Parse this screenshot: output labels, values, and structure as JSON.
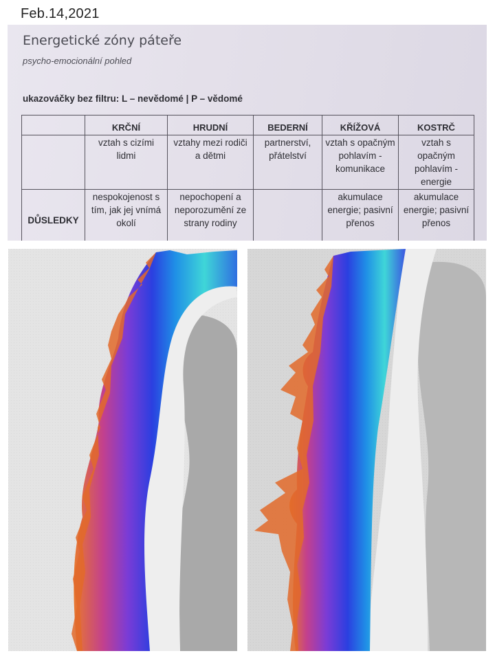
{
  "photo_date": "Feb.14,2021",
  "document": {
    "title": "Energetické zóny páteře",
    "subtitle": "psycho-emocionální pohled",
    "note": "ukazováčky bez filtru: L – nevědomé | P – vědomé",
    "table": {
      "headers": [
        "",
        "KRČNÍ",
        "HRUDNÍ",
        "BEDERNÍ",
        "KŘÍŽOVÁ",
        "KOSTRČ"
      ],
      "rows": [
        {
          "label": "",
          "cells": [
            "vztah s cizími lidmi",
            "vztahy mezi rodiči a dětmi",
            "partnerství, přátelství",
            "vztah s opačným pohlavím - komunikace",
            "vztah s opačným pohlavím - energie"
          ]
        },
        {
          "label": "DŮSLEDKY",
          "cells": [
            "nespokojenost s tím, jak jej vnímá okolí",
            "nepochopení a neporozumění ze strany rodiny",
            "",
            "akumulace energie; pasivní přenos",
            "akumulace energie; pasivní přenos"
          ]
        }
      ]
    }
  },
  "scans": [
    {
      "name": "left-finger-scan",
      "colors": [
        "#e8782e",
        "#c2408e",
        "#7a3cd6",
        "#2b3fe0",
        "#1f8fe6",
        "#3fd6d8"
      ]
    },
    {
      "name": "right-finger-scan",
      "colors": [
        "#e8782e",
        "#c2408e",
        "#7a3cd6",
        "#2b3fe0",
        "#1f8fe6",
        "#3fd6d8"
      ]
    }
  ]
}
